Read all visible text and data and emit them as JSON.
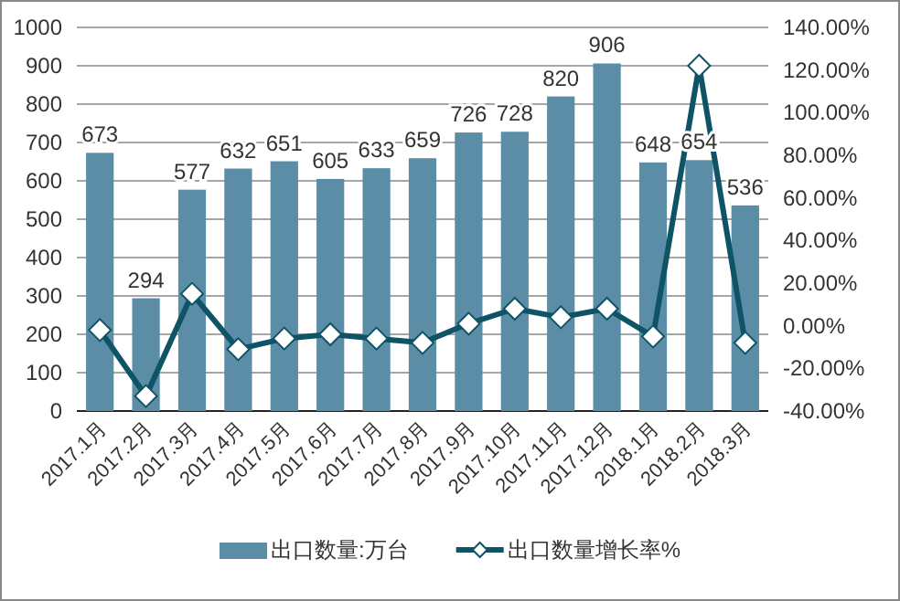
{
  "chart_data": {
    "type": "bar",
    "categories": [
      "2017.1月",
      "2017.2月",
      "2017.3月",
      "2017.4月",
      "2017.5月",
      "2017.6月",
      "2017.7月",
      "2017.8月",
      "2017.9月",
      "2017.10月",
      "2017.11月",
      "2017.12月",
      "2018.1月",
      "2018.2月",
      "2018.3月"
    ],
    "series": [
      {
        "name": "出口数量:万台",
        "color": "#5b8ea6",
        "values": [
          673,
          294,
          577,
          632,
          651,
          605,
          633,
          659,
          726,
          728,
          820,
          906,
          648,
          654,
          536
        ],
        "value_labels": [
          "673",
          "294",
          "577",
          "632",
          "651",
          "605",
          "633",
          "659",
          "726",
          "728",
          "820",
          "906",
          "648",
          "654",
          "536"
        ]
      },
      {
        "name": "出口数量增长率%",
        "type": "line",
        "axis": "y2",
        "color": "#0f5366",
        "marker": "diamond",
        "values": [
          -2,
          -33,
          15,
          -11,
          -6,
          -4,
          -6,
          -8,
          1,
          8,
          4,
          8,
          -5,
          122,
          -8
        ]
      }
    ],
    "ylim": [
      0,
      1000
    ],
    "yticks": [
      0,
      100,
      200,
      300,
      400,
      500,
      600,
      700,
      800,
      900,
      1000
    ],
    "y2lim": [
      -40,
      140
    ],
    "y2ticks": [
      {
        "value": -40,
        "label": "-40.00%"
      },
      {
        "value": -20,
        "label": "-20.00%"
      },
      {
        "value": 0,
        "label": "0.00%"
      },
      {
        "value": 20,
        "label": "20.00%"
      },
      {
        "value": 40,
        "label": "40.00%"
      },
      {
        "value": 60,
        "label": "60.00%"
      },
      {
        "value": 80,
        "label": "80.00%"
      },
      {
        "value": 100,
        "label": "100.00%"
      },
      {
        "value": 120,
        "label": "120.00%"
      },
      {
        "value": 140,
        "label": "140.00%"
      }
    ],
    "grid": "y",
    "legend": "bottom"
  }
}
